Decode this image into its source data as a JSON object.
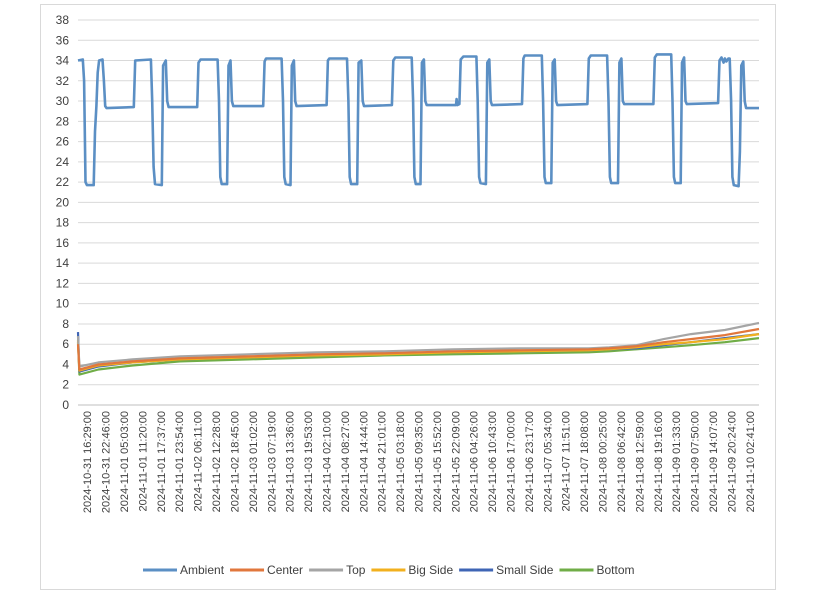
{
  "chart_data": {
    "type": "line",
    "title": "",
    "xlabel": "",
    "ylabel": "",
    "ylim": [
      0,
      38
    ],
    "y_ticks": [
      "0",
      "2",
      "4",
      "6",
      "8",
      "10",
      "12",
      "14",
      "16",
      "18",
      "20",
      "22",
      "24",
      "26",
      "28",
      "30",
      "32",
      "34",
      "36",
      "38"
    ],
    "grid": "horizontal",
    "legend_position": "bottom",
    "x_range": [
      0,
      1
    ],
    "x_ticks": [
      "2024-10-31 16:29:00",
      "2024-10-31 22:46:00",
      "2024-11-01 05:03:00",
      "2024-11-01 11:20:00",
      "2024-11-01 17:37:00",
      "2024-11-01 23:54:00",
      "2024-11-02 06:11:00",
      "2024-11-02 12:28:00",
      "2024-11-02 18:45:00",
      "2024-11-03 01:02:00",
      "2024-11-03 07:19:00",
      "2024-11-03 13:36:00",
      "2024-11-03 19:53:00",
      "2024-11-04 02:10:00",
      "2024-11-04 08:27:00",
      "2024-11-04 14:44:00",
      "2024-11-04 21:01:00",
      "2024-11-05 03:18:00",
      "2024-11-05 09:35:00",
      "2024-11-05 15:52:00",
      "2024-11-05 22:09:00",
      "2024-11-06 04:26:00",
      "2024-11-06 10:43:00",
      "2024-11-06 17:00:00",
      "2024-11-06 23:17:00",
      "2024-11-07 05:34:00",
      "2024-11-07 11:51:00",
      "2024-11-07 18:08:00",
      "2024-11-08 00:25:00",
      "2024-11-08 06:42:00",
      "2024-11-08 12:59:00",
      "2024-11-08 19:16:00",
      "2024-11-09 01:33:00",
      "2024-11-09 07:50:00",
      "2024-11-09 14:07:00",
      "2024-11-09 20:24:00",
      "2024-11-10 02:41:00"
    ],
    "series": [
      {
        "name": "Ambient",
        "color": "#5b8fc4",
        "points": [
          [
            0.0,
            34.0
          ],
          [
            0.007,
            34.1
          ],
          [
            0.009,
            32.0
          ],
          [
            0.011,
            22.0
          ],
          [
            0.013,
            21.7
          ],
          [
            0.023,
            21.7
          ],
          [
            0.025,
            27.0
          ],
          [
            0.027,
            29.5
          ],
          [
            0.029,
            32.8
          ],
          [
            0.031,
            34.0
          ],
          [
            0.036,
            34.1
          ],
          [
            0.038,
            32.0
          ],
          [
            0.04,
            29.5
          ],
          [
            0.042,
            29.3
          ],
          [
            0.082,
            29.4
          ],
          [
            0.084,
            34.0
          ],
          [
            0.107,
            34.1
          ],
          [
            0.109,
            30.0
          ],
          [
            0.111,
            23.5
          ],
          [
            0.113,
            21.8
          ],
          [
            0.123,
            21.7
          ],
          [
            0.125,
            33.5
          ],
          [
            0.129,
            34.0
          ],
          [
            0.131,
            30.0
          ],
          [
            0.133,
            29.4
          ],
          [
            0.175,
            29.4
          ],
          [
            0.177,
            33.8
          ],
          [
            0.18,
            34.1
          ],
          [
            0.205,
            34.1
          ],
          [
            0.207,
            30.0
          ],
          [
            0.209,
            22.5
          ],
          [
            0.211,
            21.8
          ],
          [
            0.219,
            21.8
          ],
          [
            0.221,
            33.5
          ],
          [
            0.224,
            34.0
          ],
          [
            0.226,
            30.0
          ],
          [
            0.228,
            29.5
          ],
          [
            0.272,
            29.5
          ],
          [
            0.274,
            33.9
          ],
          [
            0.276,
            34.2
          ],
          [
            0.299,
            34.2
          ],
          [
            0.301,
            30.0
          ],
          [
            0.303,
            22.5
          ],
          [
            0.305,
            21.8
          ],
          [
            0.312,
            21.7
          ],
          [
            0.314,
            33.5
          ],
          [
            0.317,
            34.0
          ],
          [
            0.319,
            30.0
          ],
          [
            0.321,
            29.5
          ],
          [
            0.365,
            29.6
          ],
          [
            0.367,
            34.0
          ],
          [
            0.369,
            34.2
          ],
          [
            0.395,
            34.2
          ],
          [
            0.397,
            30.0
          ],
          [
            0.399,
            22.5
          ],
          [
            0.401,
            21.8
          ],
          [
            0.41,
            21.8
          ],
          [
            0.412,
            33.8
          ],
          [
            0.416,
            34.0
          ],
          [
            0.418,
            30.0
          ],
          [
            0.42,
            29.5
          ],
          [
            0.461,
            29.6
          ],
          [
            0.463,
            34.0
          ],
          [
            0.466,
            34.3
          ],
          [
            0.49,
            34.3
          ],
          [
            0.492,
            30.0
          ],
          [
            0.494,
            22.5
          ],
          [
            0.496,
            21.8
          ],
          [
            0.503,
            21.8
          ],
          [
            0.505,
            33.8
          ],
          [
            0.508,
            34.1
          ],
          [
            0.51,
            30.0
          ],
          [
            0.512,
            29.6
          ],
          [
            0.555,
            29.6
          ],
          [
            0.556,
            30.2
          ],
          [
            0.557,
            29.6
          ],
          [
            0.56,
            29.7
          ],
          [
            0.562,
            34.1
          ],
          [
            0.566,
            34.4
          ],
          [
            0.585,
            34.4
          ],
          [
            0.587,
            30.0
          ],
          [
            0.589,
            22.5
          ],
          [
            0.591,
            21.9
          ],
          [
            0.599,
            21.8
          ],
          [
            0.601,
            33.8
          ],
          [
            0.604,
            34.1
          ],
          [
            0.606,
            30.0
          ],
          [
            0.608,
            29.6
          ],
          [
            0.652,
            29.7
          ],
          [
            0.654,
            34.2
          ],
          [
            0.656,
            34.5
          ],
          [
            0.681,
            34.5
          ],
          [
            0.683,
            30.0
          ],
          [
            0.685,
            22.5
          ],
          [
            0.687,
            21.9
          ],
          [
            0.695,
            21.9
          ],
          [
            0.697,
            33.8
          ],
          [
            0.7,
            34.1
          ],
          [
            0.702,
            30.0
          ],
          [
            0.704,
            29.6
          ],
          [
            0.748,
            29.7
          ],
          [
            0.75,
            34.2
          ],
          [
            0.753,
            34.5
          ],
          [
            0.777,
            34.5
          ],
          [
            0.779,
            30.0
          ],
          [
            0.781,
            22.5
          ],
          [
            0.783,
            21.9
          ],
          [
            0.793,
            21.9
          ],
          [
            0.795,
            33.8
          ],
          [
            0.798,
            34.2
          ],
          [
            0.8,
            30.0
          ],
          [
            0.802,
            29.7
          ],
          [
            0.845,
            29.7
          ],
          [
            0.847,
            34.3
          ],
          [
            0.85,
            34.6
          ],
          [
            0.871,
            34.6
          ],
          [
            0.873,
            30.0
          ],
          [
            0.875,
            22.5
          ],
          [
            0.877,
            21.9
          ],
          [
            0.885,
            21.9
          ],
          [
            0.887,
            33.8
          ],
          [
            0.89,
            34.3
          ],
          [
            0.892,
            30.0
          ],
          [
            0.894,
            29.7
          ],
          [
            0.94,
            29.8
          ],
          [
            0.942,
            34.0
          ],
          [
            0.945,
            34.3
          ],
          [
            0.948,
            33.8
          ],
          [
            0.95,
            34.2
          ],
          [
            0.952,
            33.9
          ],
          [
            0.955,
            34.2
          ],
          [
            0.957,
            34.2
          ],
          [
            0.959,
            30.0
          ],
          [
            0.961,
            22.5
          ],
          [
            0.963,
            21.7
          ],
          [
            0.97,
            21.6
          ],
          [
            0.972,
            25.0
          ],
          [
            0.974,
            33.5
          ],
          [
            0.977,
            33.9
          ],
          [
            0.979,
            30.0
          ],
          [
            0.981,
            29.3
          ],
          [
            1.0,
            29.3
          ]
        ]
      },
      {
        "name": "Center",
        "color": "#e1773c",
        "points": [
          [
            0.0,
            6.0
          ],
          [
            0.002,
            3.5
          ],
          [
            0.03,
            4.0
          ],
          [
            0.08,
            4.3
          ],
          [
            0.15,
            4.6
          ],
          [
            0.25,
            4.8
          ],
          [
            0.35,
            5.0
          ],
          [
            0.45,
            5.1
          ],
          [
            0.55,
            5.3
          ],
          [
            0.65,
            5.4
          ],
          [
            0.75,
            5.5
          ],
          [
            0.78,
            5.6
          ],
          [
            0.82,
            5.8
          ],
          [
            0.86,
            6.2
          ],
          [
            0.9,
            6.5
          ],
          [
            0.95,
            6.9
          ],
          [
            1.0,
            7.5
          ]
        ]
      },
      {
        "name": "Top",
        "color": "#a5a5a5",
        "points": [
          [
            0.0,
            6.8
          ],
          [
            0.002,
            3.8
          ],
          [
            0.03,
            4.2
          ],
          [
            0.08,
            4.5
          ],
          [
            0.15,
            4.8
          ],
          [
            0.25,
            5.0
          ],
          [
            0.35,
            5.2
          ],
          [
            0.45,
            5.3
          ],
          [
            0.55,
            5.5
          ],
          [
            0.65,
            5.6
          ],
          [
            0.75,
            5.6
          ],
          [
            0.78,
            5.7
          ],
          [
            0.82,
            5.9
          ],
          [
            0.86,
            6.5
          ],
          [
            0.9,
            7.0
          ],
          [
            0.95,
            7.4
          ],
          [
            1.0,
            8.1
          ]
        ]
      },
      {
        "name": "Big Side",
        "color": "#f2b01e",
        "points": [
          [
            0.0,
            6.4
          ],
          [
            0.002,
            3.4
          ],
          [
            0.03,
            3.9
          ],
          [
            0.08,
            4.2
          ],
          [
            0.15,
            4.5
          ],
          [
            0.25,
            4.7
          ],
          [
            0.35,
            4.9
          ],
          [
            0.45,
            5.0
          ],
          [
            0.55,
            5.2
          ],
          [
            0.65,
            5.3
          ],
          [
            0.75,
            5.4
          ],
          [
            0.78,
            5.5
          ],
          [
            0.82,
            5.7
          ],
          [
            0.86,
            6.0
          ],
          [
            0.9,
            6.2
          ],
          [
            0.95,
            6.5
          ],
          [
            1.0,
            7.0
          ]
        ]
      },
      {
        "name": "Small Side",
        "color": "#3f65b5",
        "points": [
          [
            0.0,
            7.2
          ],
          [
            0.002,
            3.3
          ],
          [
            0.03,
            3.8
          ],
          [
            0.08,
            4.2
          ],
          [
            0.15,
            4.5
          ],
          [
            0.25,
            4.7
          ],
          [
            0.35,
            4.9
          ],
          [
            0.45,
            5.1
          ],
          [
            0.55,
            5.2
          ],
          [
            0.65,
            5.3
          ],
          [
            0.75,
            5.4
          ],
          [
            0.78,
            5.5
          ],
          [
            0.82,
            5.6
          ],
          [
            0.86,
            5.9
          ],
          [
            0.9,
            6.2
          ],
          [
            0.95,
            6.6
          ],
          [
            1.0,
            7.0
          ]
        ]
      },
      {
        "name": "Bottom",
        "color": "#70ad47",
        "points": [
          [
            0.0,
            6.2
          ],
          [
            0.002,
            3.0
          ],
          [
            0.03,
            3.5
          ],
          [
            0.08,
            3.9
          ],
          [
            0.15,
            4.3
          ],
          [
            0.25,
            4.5
          ],
          [
            0.35,
            4.7
          ],
          [
            0.45,
            4.9
          ],
          [
            0.55,
            5.0
          ],
          [
            0.65,
            5.1
          ],
          [
            0.75,
            5.2
          ],
          [
            0.78,
            5.3
          ],
          [
            0.82,
            5.5
          ],
          [
            0.86,
            5.7
          ],
          [
            0.9,
            5.9
          ],
          [
            0.95,
            6.2
          ],
          [
            1.0,
            6.6
          ]
        ]
      }
    ]
  }
}
